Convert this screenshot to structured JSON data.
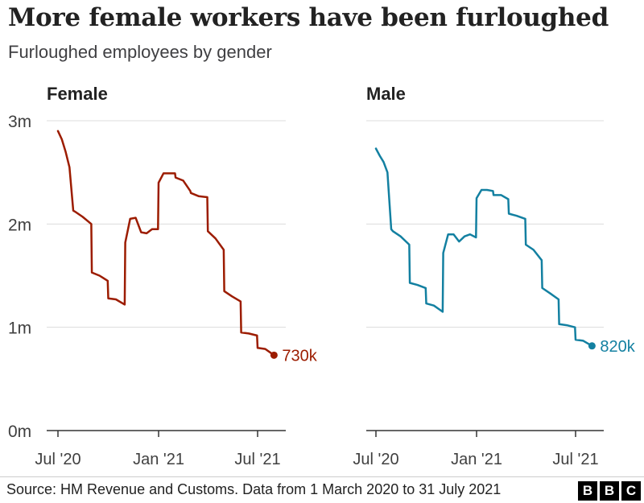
{
  "chart_data": {
    "type": "line",
    "title": "More female workers have been furloughed",
    "subtitle": "Furloughed employees by gender",
    "x_tick_labels": [
      "Jul '20",
      "Jan '21",
      "Jul '21"
    ],
    "y_tick_labels": [
      "0m",
      "1m",
      "2m",
      "3m"
    ],
    "ylim": [
      0,
      3
    ],
    "grid": true,
    "source": "Source: HM Revenue and Customs. Data from 1 March 2020 to 31 July 2021",
    "panels": [
      {
        "name": "Female",
        "color": "#9c1c00",
        "end_label": "730k",
        "x": [
          "2020-07-01",
          "2020-07-08",
          "2020-07-15",
          "2020-07-22",
          "2020-07-29",
          "2020-08-01",
          "2020-08-15",
          "2020-08-31",
          "2020-09-01",
          "2020-09-15",
          "2020-09-30",
          "2020-10-01",
          "2020-10-15",
          "2020-10-31",
          "2020-11-01",
          "2020-11-10",
          "2020-11-20",
          "2020-11-30",
          "2020-12-10",
          "2020-12-20",
          "2020-12-31",
          "2021-01-01",
          "2021-01-10",
          "2021-01-20",
          "2021-01-31",
          "2021-02-01",
          "2021-02-15",
          "2021-02-28",
          "2021-03-01",
          "2021-03-15",
          "2021-03-31",
          "2021-04-01",
          "2021-04-15",
          "2021-04-30",
          "2021-05-01",
          "2021-05-15",
          "2021-05-31",
          "2021-06-01",
          "2021-06-15",
          "2021-06-30",
          "2021-07-01",
          "2021-07-15",
          "2021-07-31"
        ],
        "y": [
          2.9,
          2.82,
          2.7,
          2.55,
          2.13,
          2.12,
          2.07,
          2.0,
          1.53,
          1.5,
          1.45,
          1.28,
          1.27,
          1.22,
          1.82,
          2.05,
          2.06,
          1.92,
          1.91,
          1.95,
          1.95,
          2.4,
          2.49,
          2.49,
          2.49,
          2.45,
          2.42,
          2.32,
          2.3,
          2.27,
          2.26,
          1.93,
          1.86,
          1.75,
          1.35,
          1.3,
          1.25,
          0.95,
          0.94,
          0.92,
          0.8,
          0.79,
          0.73
        ]
      },
      {
        "name": "Male",
        "color": "#1380a1",
        "end_label": "820k",
        "x": [
          "2020-07-01",
          "2020-07-08",
          "2020-07-15",
          "2020-07-22",
          "2020-07-29",
          "2020-08-01",
          "2020-08-15",
          "2020-08-31",
          "2020-09-01",
          "2020-09-15",
          "2020-09-30",
          "2020-10-01",
          "2020-10-15",
          "2020-10-31",
          "2020-11-01",
          "2020-11-10",
          "2020-11-20",
          "2020-11-30",
          "2020-12-10",
          "2020-12-20",
          "2020-12-31",
          "2021-01-01",
          "2021-01-10",
          "2021-01-20",
          "2021-01-31",
          "2021-02-01",
          "2021-02-15",
          "2021-02-28",
          "2021-03-01",
          "2021-03-15",
          "2021-03-31",
          "2021-04-01",
          "2021-04-15",
          "2021-04-30",
          "2021-05-01",
          "2021-05-15",
          "2021-05-31",
          "2021-06-01",
          "2021-06-15",
          "2021-06-30",
          "2021-07-01",
          "2021-07-15",
          "2021-07-31"
        ],
        "y": [
          2.73,
          2.66,
          2.6,
          2.5,
          1.95,
          1.93,
          1.88,
          1.8,
          1.43,
          1.41,
          1.38,
          1.23,
          1.21,
          1.15,
          1.72,
          1.9,
          1.9,
          1.83,
          1.88,
          1.9,
          1.87,
          2.25,
          2.33,
          2.33,
          2.32,
          2.28,
          2.28,
          2.24,
          2.1,
          2.08,
          2.05,
          1.8,
          1.75,
          1.65,
          1.38,
          1.33,
          1.27,
          1.03,
          1.02,
          1.0,
          0.88,
          0.87,
          0.82
        ]
      }
    ]
  }
}
